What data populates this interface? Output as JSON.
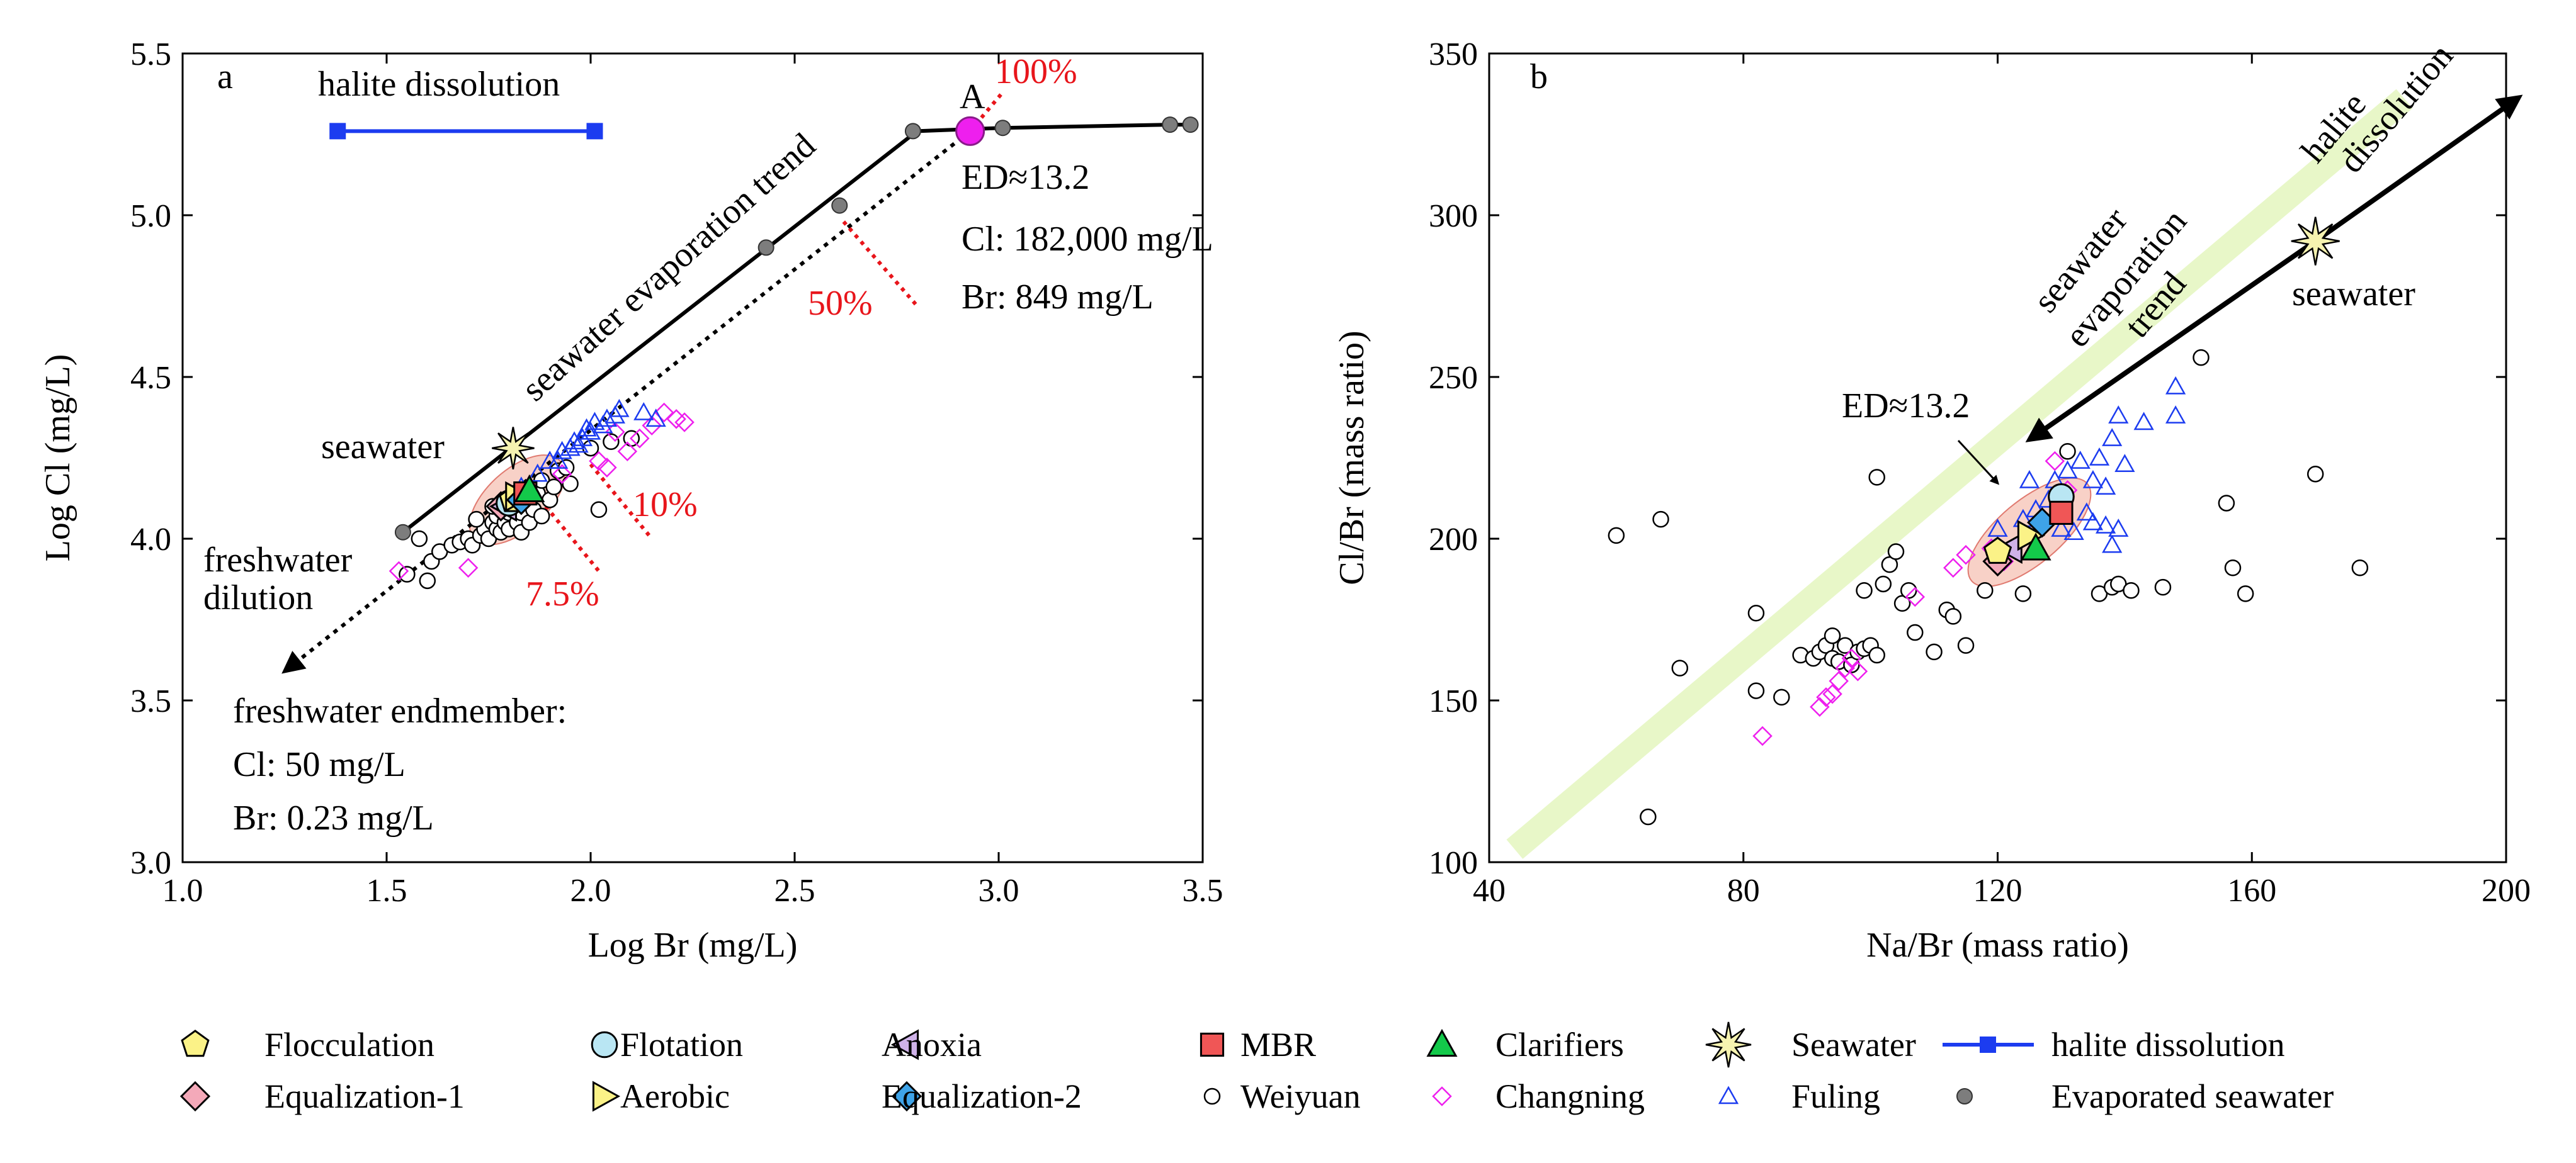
{
  "colors": {
    "red": "#e8151b",
    "blue": "#1c3cf0",
    "magenta": "#ee1fee",
    "gray": "#7d7d7d",
    "pink_fill": "#f4a9b9",
    "yellow_fill": "#fbf287",
    "cyan_fill": "#b9e6f3",
    "violet_fill": "#cfb2e8",
    "blue_fill": "#3ea3e8",
    "green": "#13c94a",
    "mbr": "#f05656",
    "greenband": "#e8f7c8",
    "ellipse": "#f5b8a9"
  },
  "chart_data": [
    {
      "panel": "a",
      "type": "scatter",
      "xlabel": "Log Br (mg/L)",
      "ylabel": "Log Cl (mg/L)",
      "xlim": [
        1.0,
        3.5
      ],
      "ylim": [
        3.0,
        5.5
      ],
      "xticks": [
        "1.0",
        "1.5",
        "2.0",
        "2.5",
        "3.0",
        "3.5"
      ],
      "yticks": [
        "3.0",
        "3.5",
        "4.0",
        "4.5",
        "5.0",
        "5.5"
      ],
      "annotations": {
        "panel_label": "a",
        "halite": "halite dissolution",
        "trend": "seawater evaporation trend",
        "seawater": "seawater",
        "fresh1": "freshwater",
        "fresh2": "dilution",
        "endmember_title": "freshwater endmember:",
        "endmember_cl": "Cl: 50 mg/L",
        "endmember_br": "Br: 0.23 mg/L",
        "point_a": "A",
        "ed": "ED≈13.2",
        "cl": "Cl: 182,000 mg/L",
        "br": "Br: 849 mg/L",
        "pct100": "100%",
        "pct50": "50%",
        "pct10": "10%",
        "pct75": "7.5%"
      },
      "evaporated_seawater_line": [
        [
          1.54,
          4.02
        ],
        [
          2.8,
          5.26
        ],
        [
          3.01,
          5.27
        ],
        [
          3.42,
          5.28
        ],
        [
          3.47,
          5.28
        ]
      ],
      "evaporated_seawater_points": [
        [
          1.54,
          4.02
        ],
        [
          2.43,
          4.9
        ],
        [
          2.61,
          5.03
        ],
        [
          2.79,
          5.26
        ],
        [
          3.01,
          5.27
        ],
        [
          3.42,
          5.28
        ],
        [
          3.47,
          5.28
        ]
      ],
      "mixing_line": [
        [
          1.26,
          3.6
        ],
        [
          2.93,
          5.26
        ]
      ],
      "point_A": [
        2.93,
        5.26
      ],
      "halite_dissolution": [
        [
          1.38,
          5.26
        ],
        [
          2.01,
          5.26
        ]
      ],
      "seawater": [
        1.81,
        4.28
      ],
      "weiyuan": [
        [
          1.55,
          3.89
        ],
        [
          1.58,
          4.0
        ],
        [
          1.6,
          3.87
        ],
        [
          1.61,
          3.93
        ],
        [
          1.63,
          3.96
        ],
        [
          1.66,
          3.98
        ],
        [
          1.68,
          3.99
        ],
        [
          1.7,
          4.0
        ],
        [
          1.71,
          3.98
        ],
        [
          1.73,
          4.01
        ],
        [
          1.74,
          4.03
        ],
        [
          1.75,
          4.0
        ],
        [
          1.76,
          4.05
        ],
        [
          1.77,
          4.03
        ],
        [
          1.77,
          4.07
        ],
        [
          1.78,
          4.02
        ],
        [
          1.79,
          4.05
        ],
        [
          1.8,
          4.08
        ],
        [
          1.8,
          4.03
        ],
        [
          1.81,
          4.1
        ],
        [
          1.82,
          4.05
        ],
        [
          1.83,
          4.02
        ],
        [
          1.83,
          4.08
        ],
        [
          1.84,
          4.12
        ],
        [
          1.85,
          4.05
        ],
        [
          1.86,
          4.09
        ],
        [
          1.87,
          4.14
        ],
        [
          1.88,
          4.07
        ],
        [
          1.88,
          4.18
        ],
        [
          1.9,
          4.12
        ],
        [
          1.91,
          4.16
        ],
        [
          1.92,
          4.21
        ],
        [
          1.94,
          4.22
        ],
        [
          1.95,
          4.17
        ],
        [
          2.0,
          4.28
        ],
        [
          2.02,
          4.09
        ],
        [
          2.05,
          4.3
        ],
        [
          2.1,
          4.31
        ],
        [
          1.72,
          4.06
        ],
        [
          1.76,
          4.1
        ]
      ],
      "changning": [
        [
          1.53,
          3.9
        ],
        [
          1.7,
          3.91
        ],
        [
          1.93,
          4.2
        ],
        [
          2.02,
          4.24
        ],
        [
          2.04,
          4.22
        ],
        [
          2.09,
          4.27
        ],
        [
          2.12,
          4.31
        ],
        [
          2.15,
          4.35
        ],
        [
          2.18,
          4.39
        ],
        [
          2.21,
          4.37
        ],
        [
          2.23,
          4.36
        ],
        [
          2.06,
          4.33
        ]
      ],
      "fuling": [
        [
          1.83,
          4.16
        ],
        [
          1.87,
          4.2
        ],
        [
          1.9,
          4.24
        ],
        [
          1.93,
          4.27
        ],
        [
          1.95,
          4.28
        ],
        [
          1.96,
          4.3
        ],
        [
          1.98,
          4.31
        ],
        [
          1.99,
          4.34
        ],
        [
          2.0,
          4.33
        ],
        [
          2.01,
          4.36
        ],
        [
          2.03,
          4.35
        ],
        [
          2.04,
          4.37
        ],
        [
          2.06,
          4.38
        ],
        [
          2.07,
          4.4
        ],
        [
          2.13,
          4.39
        ],
        [
          2.16,
          4.37
        ],
        [
          1.92,
          4.24
        ],
        [
          1.97,
          4.29
        ]
      ],
      "samples": {
        "flocculation": [
          1.81,
          4.12
        ],
        "flotation": [
          1.8,
          4.11
        ],
        "anoxia": [
          1.79,
          4.1
        ],
        "mbr": [
          1.84,
          4.14
        ],
        "clarifiers": [
          1.85,
          4.15
        ],
        "equalization1": [
          1.78,
          4.1
        ],
        "aerobic": [
          1.82,
          4.13
        ],
        "equalization2": [
          1.83,
          4.12
        ]
      }
    },
    {
      "panel": "b",
      "type": "scatter",
      "xlabel": "Na/Br (mass ratio)",
      "ylabel": "Cl/Br (mass ratio)",
      "xlim": [
        40,
        200
      ],
      "ylim": [
        100,
        350
      ],
      "xticks": [
        "40",
        "80",
        "120",
        "160",
        "200"
      ],
      "yticks": [
        "100",
        "150",
        "200",
        "250",
        "300",
        "350"
      ],
      "annotations": {
        "panel_label": "b",
        "halite1": "halite",
        "halite2": "dissolution",
        "evap1": "seawater",
        "evap2": "evaporation",
        "evap3": "trend",
        "seawater": "seawater",
        "ed": "ED≈13.2"
      },
      "band": [
        [
          44,
          104
        ],
        [
          184,
          336
        ]
      ],
      "arrow_halite": [
        [
          170,
          292
        ],
        [
          201,
          335
        ]
      ],
      "arrow_evap": [
        [
          170,
          292
        ],
        [
          126,
          232
        ]
      ],
      "seawater": [
        170,
        292
      ],
      "weiyuan": [
        [
          60,
          201
        ],
        [
          65,
          114
        ],
        [
          67,
          206
        ],
        [
          70,
          160
        ],
        [
          82,
          177
        ],
        [
          82,
          153
        ],
        [
          86,
          151
        ],
        [
          89,
          164
        ],
        [
          91,
          163
        ],
        [
          92,
          165
        ],
        [
          93,
          167
        ],
        [
          94,
          170
        ],
        [
          94,
          163
        ],
        [
          95,
          162
        ],
        [
          96,
          167
        ],
        [
          97,
          161
        ],
        [
          98,
          165
        ],
        [
          99,
          166
        ],
        [
          100,
          167
        ],
        [
          101,
          164
        ],
        [
          99,
          184
        ],
        [
          102,
          186
        ],
        [
          103,
          192
        ],
        [
          104,
          196
        ],
        [
          105,
          180
        ],
        [
          106,
          184
        ],
        [
          107,
          171
        ],
        [
          110,
          165
        ],
        [
          112,
          178
        ],
        [
          113,
          176
        ],
        [
          115,
          167
        ],
        [
          101,
          219
        ],
        [
          118,
          184
        ],
        [
          124,
          183
        ],
        [
          136,
          183
        ],
        [
          138,
          185
        ],
        [
          139,
          186
        ],
        [
          141,
          184
        ],
        [
          146,
          185
        ],
        [
          131,
          227
        ],
        [
          152,
          256
        ],
        [
          156,
          211
        ],
        [
          157,
          191
        ],
        [
          159,
          183
        ],
        [
          170,
          220
        ],
        [
          177,
          191
        ]
      ],
      "changning": [
        [
          83,
          139
        ],
        [
          92,
          148
        ],
        [
          93,
          151
        ],
        [
          94,
          152
        ],
        [
          95,
          156
        ],
        [
          96,
          160
        ],
        [
          97,
          163
        ],
        [
          98,
          159
        ],
        [
          107,
          182
        ],
        [
          113,
          191
        ],
        [
          115,
          195
        ],
        [
          119,
          197
        ],
        [
          121,
          193
        ],
        [
          129,
          224
        ],
        [
          131,
          215
        ]
      ],
      "fuling": [
        [
          120,
          203
        ],
        [
          124,
          206
        ],
        [
          126,
          209
        ],
        [
          128,
          212
        ],
        [
          129,
          218
        ],
        [
          130,
          203
        ],
        [
          131,
          221
        ],
        [
          132,
          202
        ],
        [
          133,
          224
        ],
        [
          134,
          208
        ],
        [
          135,
          218
        ],
        [
          136,
          225
        ],
        [
          137,
          204
        ],
        [
          137,
          216
        ],
        [
          138,
          198
        ],
        [
          138,
          231
        ],
        [
          139,
          238
        ],
        [
          139,
          203
        ],
        [
          140,
          223
        ],
        [
          143,
          236
        ],
        [
          148,
          238
        ],
        [
          148,
          247
        ],
        [
          125,
          218
        ],
        [
          135,
          205
        ]
      ],
      "samples": {
        "flocculation": [
          120,
          196
        ],
        "flotation": [
          130,
          213
        ],
        "anoxia": [
          122,
          197
        ],
        "mbr": [
          130,
          208
        ],
        "clarifiers": [
          126,
          197
        ],
        "equalization1": [
          120,
          193
        ],
        "aerobic": [
          125,
          201
        ],
        "equalization2": [
          127,
          205
        ]
      }
    }
  ],
  "legend": {
    "row1": [
      "Flocculation",
      "Flotation",
      "Anoxia",
      "MBR",
      "Clarifiers",
      "Seawater",
      "halite dissolution"
    ],
    "row2": [
      "Equalization-1",
      "Aerobic",
      "Equalization-2",
      "Weiyuan",
      "Changning",
      "Fuling",
      "Evaporated seawater"
    ]
  }
}
